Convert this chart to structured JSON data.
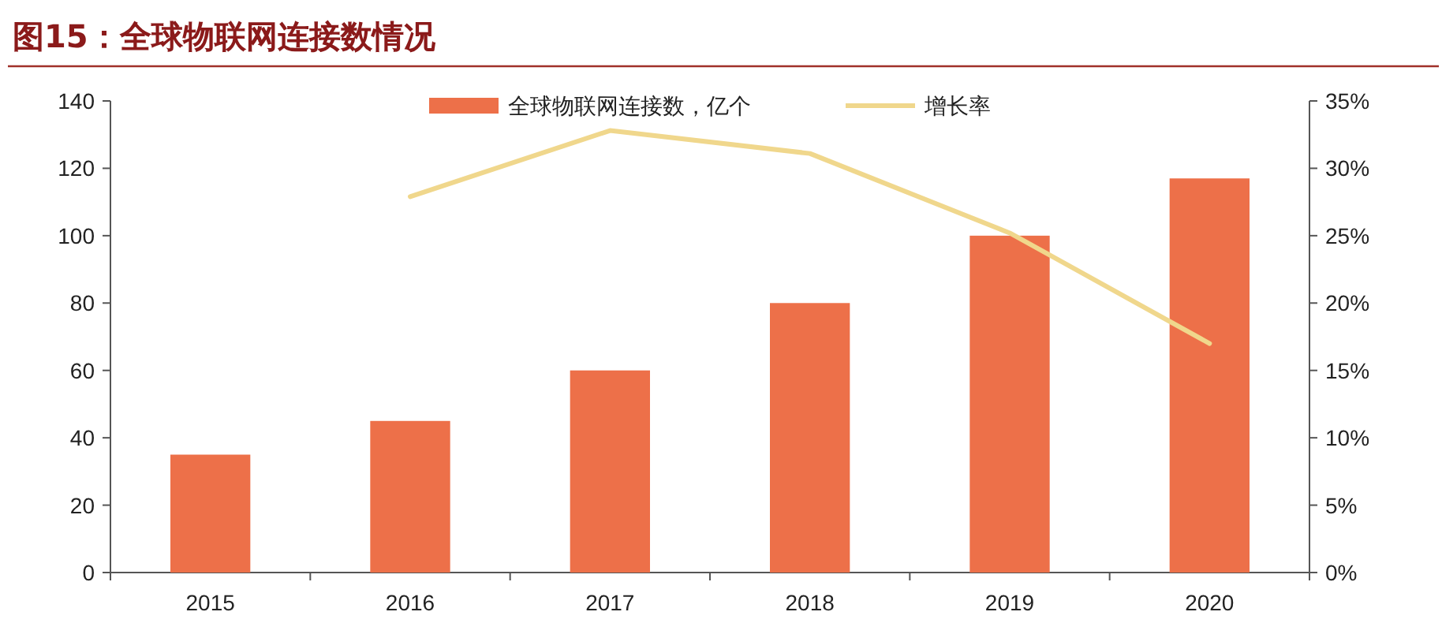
{
  "chart_data": {
    "type": "bar",
    "title": "图15：全球物联网连接数情况",
    "categories": [
      "2015",
      "2016",
      "2017",
      "2018",
      "2019",
      "2020"
    ],
    "series": [
      {
        "name": "全球物联网连接数，亿个",
        "color": "#ed7049",
        "values": [
          35,
          45,
          60,
          80,
          100,
          117
        ]
      },
      {
        "name": "增长率",
        "type": "line",
        "axis": "y2",
        "color": "#f0d78c",
        "values": [
          null,
          27.9,
          32.8,
          31.1,
          25.2,
          17.0
        ]
      }
    ],
    "ylim": [
      0,
      140
    ],
    "yticks": [
      0,
      20,
      40,
      60,
      80,
      100,
      120,
      140
    ],
    "y2lim": [
      0,
      35
    ],
    "y2ticks": [
      {
        "value": 0,
        "label": "0%"
      },
      {
        "value": 5,
        "label": "5%"
      },
      {
        "value": 10,
        "label": "10%"
      },
      {
        "value": 15,
        "label": "15%"
      },
      {
        "value": 20,
        "label": "20%"
      },
      {
        "value": 25,
        "label": "25%"
      },
      {
        "value": 30,
        "label": "30%"
      },
      {
        "value": 35,
        "label": "35%"
      }
    ],
    "legend": "top",
    "grid": false,
    "marker": "none",
    "line_style": "solid"
  }
}
